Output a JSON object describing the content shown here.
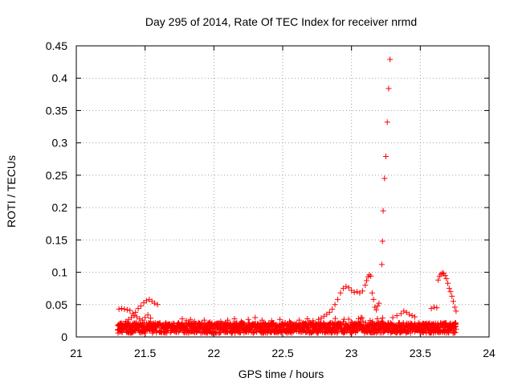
{
  "chart_data": {
    "type": "scatter",
    "title": "Day 295 of 2014, Rate Of TEC Index for receiver nrmd",
    "xlabel": "GPS time / hours",
    "ylabel": "ROTI / TECUs",
    "xlim": [
      21,
      24
    ],
    "ylim": [
      0,
      0.45
    ],
    "xticks": [
      21,
      21.5,
      22,
      22.5,
      23,
      23.5,
      24
    ],
    "xtick_labels": [
      "21",
      "21.5",
      "22",
      "22.5",
      "23",
      "23.5",
      "24"
    ],
    "yticks": [
      0,
      0.05,
      0.1,
      0.15,
      0.2,
      0.25,
      0.3,
      0.35,
      0.4,
      0.45
    ],
    "ytick_labels": [
      "0",
      "0.05",
      "0.1",
      "0.15",
      "0.2",
      "0.25",
      "0.3",
      "0.35",
      "0.4",
      "0.45"
    ],
    "grid": true,
    "marker": "+",
    "color": "#ff0000",
    "series": [
      {
        "name": "ROTI",
        "points": [
          [
            21.31,
            0.043
          ],
          [
            21.33,
            0.044
          ],
          [
            21.35,
            0.043
          ],
          [
            21.37,
            0.042
          ],
          [
            21.39,
            0.041
          ],
          [
            21.41,
            0.036
          ],
          [
            21.43,
            0.038
          ],
          [
            21.45,
            0.044
          ],
          [
            21.47,
            0.048
          ],
          [
            21.49,
            0.053
          ],
          [
            21.51,
            0.056
          ],
          [
            21.53,
            0.058
          ],
          [
            21.55,
            0.055
          ],
          [
            21.57,
            0.052
          ],
          [
            21.59,
            0.05
          ],
          [
            21.36,
            0.024
          ],
          [
            21.38,
            0.027
          ],
          [
            21.4,
            0.03
          ],
          [
            21.42,
            0.033
          ],
          [
            21.44,
            0.031
          ],
          [
            21.46,
            0.028
          ],
          [
            21.48,
            0.026
          ],
          [
            21.5,
            0.03
          ],
          [
            21.52,
            0.034
          ],
          [
            21.54,
            0.029
          ],
          [
            21.39,
            0.012
          ],
          [
            21.41,
            0.016
          ],
          [
            21.43,
            0.014
          ],
          [
            21.45,
            0.021
          ],
          [
            21.47,
            0.018
          ],
          [
            21.49,
            0.015
          ],
          [
            21.77,
            0.028
          ],
          [
            21.8,
            0.025
          ],
          [
            21.83,
            0.027
          ],
          [
            21.86,
            0.024
          ],
          [
            21.89,
            0.022
          ],
          [
            21.93,
            0.026
          ],
          [
            21.97,
            0.023
          ],
          [
            22.05,
            0.024
          ],
          [
            22.1,
            0.026
          ],
          [
            22.15,
            0.028
          ],
          [
            22.2,
            0.024
          ],
          [
            22.25,
            0.027
          ],
          [
            22.3,
            0.03
          ],
          [
            22.35,
            0.026
          ],
          [
            22.42,
            0.025
          ],
          [
            22.48,
            0.027
          ],
          [
            22.55,
            0.024
          ],
          [
            22.62,
            0.026
          ],
          [
            22.68,
            0.028
          ],
          [
            22.72,
            0.025
          ],
          [
            22.76,
            0.027
          ],
          [
            22.78,
            0.029
          ],
          [
            22.8,
            0.032
          ],
          [
            22.82,
            0.035
          ],
          [
            22.84,
            0.038
          ],
          [
            22.86,
            0.043
          ],
          [
            22.88,
            0.05
          ],
          [
            22.9,
            0.058
          ],
          [
            22.92,
            0.068
          ],
          [
            22.94,
            0.075
          ],
          [
            22.96,
            0.078
          ],
          [
            22.98,
            0.076
          ],
          [
            23.0,
            0.072
          ],
          [
            23.02,
            0.069
          ],
          [
            23.04,
            0.07
          ],
          [
            23.06,
            0.068
          ],
          [
            23.08,
            0.071
          ],
          [
            23.1,
            0.08
          ],
          [
            23.11,
            0.087
          ],
          [
            23.12,
            0.093
          ],
          [
            23.13,
            0.096
          ],
          [
            23.14,
            0.094
          ],
          [
            23.15,
            0.068
          ],
          [
            23.16,
            0.058
          ],
          [
            23.17,
            0.046
          ],
          [
            23.18,
            0.042
          ],
          [
            23.19,
            0.048
          ],
          [
            23.2,
            0.052
          ],
          [
            23.22,
            0.112
          ],
          [
            23.225,
            0.148
          ],
          [
            23.23,
            0.195
          ],
          [
            23.24,
            0.245
          ],
          [
            23.25,
            0.279
          ],
          [
            23.26,
            0.332
          ],
          [
            23.27,
            0.384
          ],
          [
            23.28,
            0.429
          ],
          [
            23.3,
            0.03
          ],
          [
            23.33,
            0.033
          ],
          [
            23.36,
            0.036
          ],
          [
            23.38,
            0.04
          ],
          [
            23.4,
            0.038
          ],
          [
            23.42,
            0.035
          ],
          [
            23.44,
            0.033
          ],
          [
            23.46,
            0.031
          ],
          [
            23.58,
            0.044
          ],
          [
            23.6,
            0.046
          ],
          [
            23.62,
            0.045
          ],
          [
            23.63,
            0.088
          ],
          [
            23.64,
            0.094
          ],
          [
            23.65,
            0.097
          ],
          [
            23.66,
            0.099
          ],
          [
            23.67,
            0.098
          ],
          [
            23.68,
            0.095
          ],
          [
            23.69,
            0.09
          ],
          [
            23.7,
            0.083
          ],
          [
            23.71,
            0.075
          ],
          [
            23.72,
            0.07
          ],
          [
            23.73,
            0.063
          ],
          [
            23.74,
            0.055
          ],
          [
            23.75,
            0.046
          ],
          [
            23.76,
            0.04
          ]
        ]
      }
    ]
  }
}
